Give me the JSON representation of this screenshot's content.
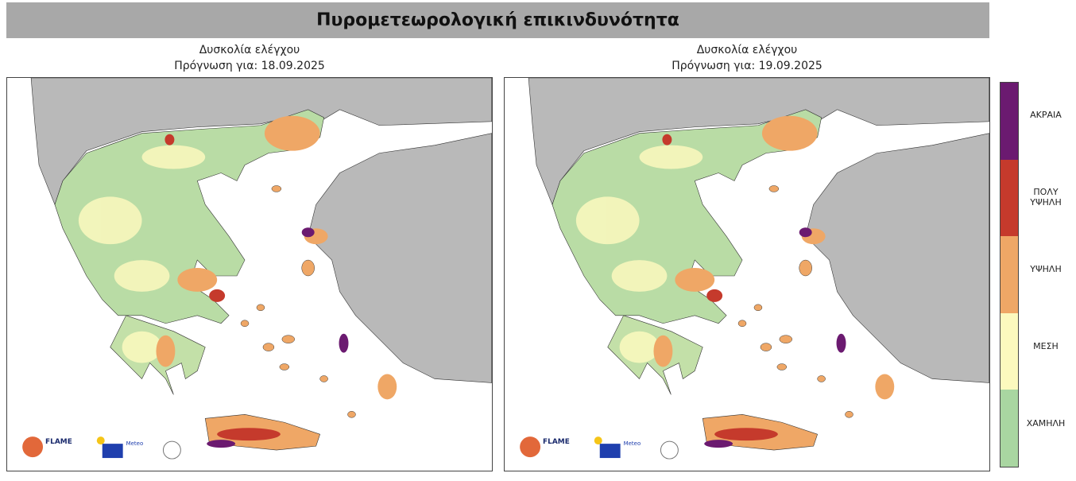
{
  "title": "Πυρομετεωρολογική επικινδυνότητα",
  "maps": [
    {
      "subtitle": "Δυσκολία ελέγχου",
      "forecast": "Πρόγνωση για: 18.09.2025"
    },
    {
      "subtitle": "Δυσκολία ελέγχου",
      "forecast": "Πρόγνωση για: 19.09.2025"
    }
  ],
  "legend": {
    "levels": [
      {
        "label": "ΑΚΡΑΙΑ",
        "color": "#6b1a70"
      },
      {
        "label": "ΠΟΛΥ ΥΨΗΛΗ",
        "color": "#c53a2c"
      },
      {
        "label": "ΥΨΗΛΗ",
        "color": "#efa766"
      },
      {
        "label": "ΜΕΣΗ",
        "color": "#fcf9be"
      },
      {
        "label": "ΧΑΜΗΛΗ",
        "color": "#a9d6a1"
      }
    ]
  },
  "logos": [
    "FLAME",
    "Meteo"
  ]
}
